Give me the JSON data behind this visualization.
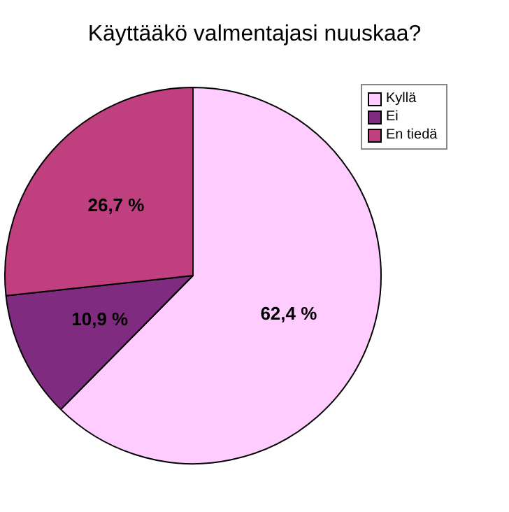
{
  "chart_data": {
    "type": "pie",
    "title": "Käyttääkö valmentajasi nuuskaa?",
    "categories": [
      "Kyllä",
      "Ei",
      "En tiedä"
    ],
    "values": [
      62.4,
      10.9,
      26.7
    ],
    "colors": [
      "#ffccff",
      "#7f2b7f",
      "#bf3f7f"
    ],
    "value_labels": [
      "62,4 %",
      "10,9 %",
      "26,7 %"
    ],
    "legend": "top right"
  }
}
